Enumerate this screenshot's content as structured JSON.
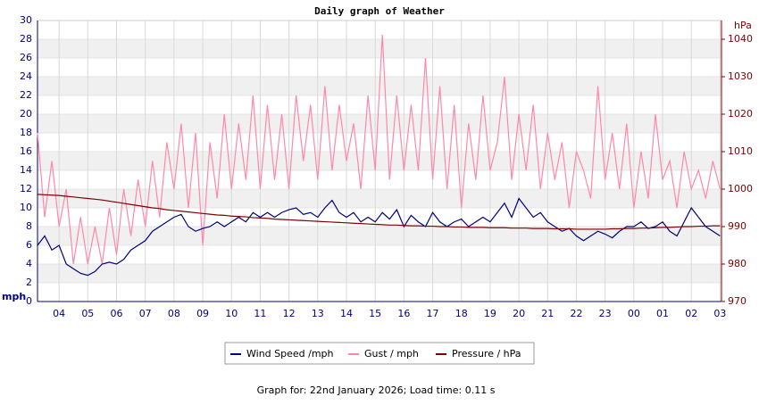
{
  "chart_data": {
    "type": "line",
    "title": "Daily graph of Weather",
    "y_label": "mph",
    "y2_label": "hPa",
    "footer": "Graph for: 22nd January 2026; Load time: 0.11 s",
    "x": [
      3.25,
      3.5,
      3.75,
      4,
      4.25,
      4.5,
      4.75,
      5,
      5.25,
      5.5,
      5.75,
      6,
      6.25,
      6.5,
      6.75,
      7,
      7.25,
      7.5,
      7.75,
      8,
      8.25,
      8.5,
      8.75,
      9,
      9.25,
      9.5,
      9.75,
      10,
      10.25,
      10.5,
      10.75,
      11,
      11.25,
      11.5,
      11.75,
      12,
      12.25,
      12.5,
      12.75,
      13,
      13.25,
      13.5,
      13.75,
      14,
      14.25,
      14.5,
      14.75,
      15,
      15.25,
      15.5,
      15.75,
      16,
      16.25,
      16.5,
      16.75,
      17,
      17.25,
      17.5,
      17.75,
      18,
      18.25,
      18.5,
      18.75,
      19,
      19.25,
      19.5,
      19.75,
      20,
      20.25,
      20.5,
      20.75,
      21,
      21.25,
      21.5,
      21.75,
      22,
      22.25,
      22.5,
      22.75,
      23,
      23.25,
      23.5,
      23.75,
      24,
      24.25,
      24.5,
      24.75,
      25,
      25.25,
      25.5,
      25.75,
      26,
      26.25,
      26.5,
      26.75,
      27
    ],
    "series": [
      {
        "name": "Wind Speed /mph",
        "color": "#000080",
        "values": [
          6,
          7,
          5.5,
          6,
          4,
          3.5,
          3,
          2.8,
          3.2,
          4,
          4.2,
          4,
          4.5,
          5.5,
          6,
          6.5,
          7.5,
          8,
          8.5,
          9,
          9.3,
          8,
          7.5,
          7.8,
          8,
          8.5,
          8,
          8.5,
          9,
          8.5,
          9.5,
          9,
          9.5,
          9,
          9.5,
          9.8,
          10,
          9.3,
          9.5,
          9,
          10,
          10.8,
          9.5,
          9,
          9.5,
          8.5,
          9,
          8.5,
          9.5,
          8.8,
          9.8,
          8,
          9.2,
          8.5,
          8,
          9.5,
          8.5,
          8,
          8.5,
          8.8,
          8,
          8.5,
          9,
          8.5,
          9.5,
          10.5,
          9,
          11,
          10,
          9,
          9.5,
          8.5,
          8,
          7.5,
          7.8,
          7,
          6.5,
          7,
          7.5,
          7.2,
          6.8,
          7.5,
          8,
          8,
          8.5,
          7.8,
          8,
          8.5,
          7.5,
          7,
          8.5,
          10,
          9,
          8,
          7.5,
          7
        ]
      },
      {
        "name": "Gust / mph",
        "color": "#ff88aa",
        "values": [
          18,
          9,
          15,
          8,
          12,
          4,
          9,
          4,
          8,
          4,
          10,
          5,
          12,
          7,
          13,
          8,
          15,
          9,
          17,
          12,
          19,
          10,
          18,
          6,
          17,
          11,
          20,
          12,
          19,
          13,
          22,
          12,
          21,
          13,
          20,
          12,
          22,
          15,
          21,
          13,
          23,
          14,
          21,
          15,
          19,
          12,
          22,
          14,
          28.5,
          13,
          22,
          14,
          21,
          14,
          26,
          13,
          23,
          12,
          21,
          10,
          19,
          13,
          22,
          14,
          17,
          24,
          13,
          20,
          14,
          21,
          12,
          18,
          13,
          17,
          10,
          16,
          14,
          11,
          23,
          13,
          18,
          12,
          19,
          10,
          16,
          11,
          20,
          13,
          15,
          10,
          16,
          12,
          14,
          11,
          15,
          12
        ]
      },
      {
        "name": "Pressure / hPa",
        "color": "#800000",
        "axis": "y2",
        "values": [
          998.6,
          998.5,
          998.4,
          998.3,
          998.1,
          997.9,
          997.7,
          997.5,
          997.3,
          997.1,
          996.8,
          996.5,
          996.2,
          995.9,
          995.6,
          995.3,
          995,
          994.8,
          994.5,
          994.3,
          994.1,
          993.9,
          993.7,
          993.5,
          993.3,
          993.1,
          993,
          992.8,
          992.7,
          992.6,
          992.4,
          992.3,
          992.2,
          992,
          991.9,
          991.8,
          991.7,
          991.6,
          991.5,
          991.4,
          991.3,
          991.2,
          991.1,
          991,
          990.9,
          990.8,
          990.7,
          990.6,
          990.5,
          990.4,
          990.4,
          990.3,
          990.2,
          990.2,
          990.1,
          990.1,
          990,
          990,
          989.9,
          989.9,
          989.8,
          989.8,
          989.8,
          989.7,
          989.7,
          989.7,
          989.6,
          989.6,
          989.6,
          989.5,
          989.5,
          989.5,
          989.4,
          989.4,
          989.4,
          989.3,
          989.3,
          989.3,
          989.3,
          989.3,
          989.4,
          989.4,
          989.5,
          989.5,
          989.6,
          989.6,
          989.7,
          989.8,
          989.8,
          989.9,
          990,
          990,
          990.1,
          990.1,
          990.2,
          990.2
        ]
      }
    ],
    "xlim": [
      3.25,
      27.05
    ],
    "xticks": [
      {
        "value": 4,
        "label": "04"
      },
      {
        "value": 5,
        "label": "05"
      },
      {
        "value": 6,
        "label": "06"
      },
      {
        "value": 7,
        "label": "07"
      },
      {
        "value": 8,
        "label": "08"
      },
      {
        "value": 9,
        "label": "09"
      },
      10,
      11,
      12,
      13,
      14,
      15,
      16,
      17,
      18,
      19,
      20,
      21,
      22,
      23,
      {
        "value": 24,
        "label": "00"
      },
      {
        "value": 25,
        "label": "01"
      },
      {
        "value": 26,
        "label": "02"
      },
      {
        "value": 27,
        "label": "03"
      }
    ],
    "ylim": [
      0,
      30
    ],
    "yticks": [
      0,
      2,
      4,
      6,
      8,
      10,
      12,
      14,
      16,
      18,
      20,
      22,
      24,
      26,
      28,
      30
    ],
    "y2lim": [
      970,
      1045
    ],
    "y2ticks": [
      970,
      980,
      990,
      1000,
      1010,
      1020,
      1030,
      1040
    ],
    "grid": true,
    "legend": "bottom"
  }
}
